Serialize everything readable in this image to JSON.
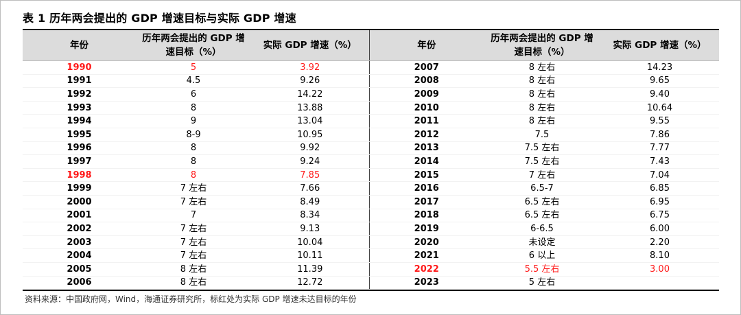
{
  "title": "表 1 历年两会提出的 GDP 增速目标与实际 GDP 增速",
  "headers": [
    "年份",
    "历年两会提出的 GDP 增速目标（%）",
    "实际 GDP 增速（%）",
    "年份",
    "历年两会提出的 GDP 增速目标（%）",
    "实际 GDP 增速（%）"
  ],
  "rows": [
    {
      "y1": "1990",
      "t1": "5",
      "a1": "3.92",
      "r1": true,
      "y2": "2007",
      "t2": "8 左右",
      "a2": "14.23",
      "r2": false
    },
    {
      "y1": "1991",
      "t1": "4.5",
      "a1": "9.26",
      "r1": false,
      "y2": "2008",
      "t2": "8 左右",
      "a2": "9.65",
      "r2": false
    },
    {
      "y1": "1992",
      "t1": "6",
      "a1": "14.22",
      "r1": false,
      "y2": "2009",
      "t2": "8 左右",
      "a2": "9.40",
      "r2": false
    },
    {
      "y1": "1993",
      "t1": "8",
      "a1": "13.88",
      "r1": false,
      "y2": "2010",
      "t2": "8 左右",
      "a2": "10.64",
      "r2": false
    },
    {
      "y1": "1994",
      "t1": "9",
      "a1": "13.04",
      "r1": false,
      "y2": "2011",
      "t2": "8 左右",
      "a2": "9.55",
      "r2": false
    },
    {
      "y1": "1995",
      "t1": "8-9",
      "a1": "10.95",
      "r1": false,
      "y2": "2012",
      "t2": "7.5",
      "a2": "7.86",
      "r2": false
    },
    {
      "y1": "1996",
      "t1": "8",
      "a1": "9.92",
      "r1": false,
      "y2": "2013",
      "t2": "7.5 左右",
      "a2": "7.77",
      "r2": false
    },
    {
      "y1": "1997",
      "t1": "8",
      "a1": "9.24",
      "r1": false,
      "y2": "2014",
      "t2": "7.5 左右",
      "a2": "7.43",
      "r2": false
    },
    {
      "y1": "1998",
      "t1": "8",
      "a1": "7.85",
      "r1": true,
      "y2": "2015",
      "t2": "7 左右",
      "a2": "7.04",
      "r2": false
    },
    {
      "y1": "1999",
      "t1": "7 左右",
      "a1": "7.66",
      "r1": false,
      "y2": "2016",
      "t2": "6.5-7",
      "a2": "6.85",
      "r2": false
    },
    {
      "y1": "2000",
      "t1": "7 左右",
      "a1": "8.49",
      "r1": false,
      "y2": "2017",
      "t2": "6.5 左右",
      "a2": "6.95",
      "r2": false
    },
    {
      "y1": "2001",
      "t1": "7",
      "a1": "8.34",
      "r1": false,
      "y2": "2018",
      "t2": "6.5 左右",
      "a2": "6.75",
      "r2": false
    },
    {
      "y1": "2002",
      "t1": "7 左右",
      "a1": "9.13",
      "r1": false,
      "y2": "2019",
      "t2": "6-6.5",
      "a2": "6.00",
      "r2": false
    },
    {
      "y1": "2003",
      "t1": "7 左右",
      "a1": "10.04",
      "r1": false,
      "y2": "2020",
      "t2": "未设定",
      "a2": "2.20",
      "r2": false
    },
    {
      "y1": "2004",
      "t1": "7 左右",
      "a1": "10.11",
      "r1": false,
      "y2": "2021",
      "t2": "6 以上",
      "a2": "8.10",
      "r2": false
    },
    {
      "y1": "2005",
      "t1": "8 左右",
      "a1": "11.39",
      "r1": false,
      "y2": "2022",
      "t2": "5.5 左右",
      "a2": "3.00",
      "r2": true
    },
    {
      "y1": "2006",
      "t1": "8 左右",
      "a1": "12.72",
      "r1": false,
      "y2": "2023",
      "t2": "5 左右",
      "a2": "",
      "r2": false
    }
  ],
  "note": "资料来源：中国政府网，Wind，海通证券研究所，标红处为实际 GDP 增速未达目标的年份",
  "colors": {
    "highlight": "#ff1a1a",
    "header_bg": "#dcdcdc"
  }
}
